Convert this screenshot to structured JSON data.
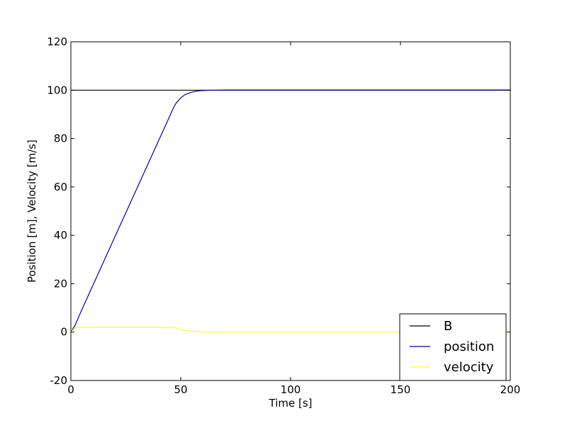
{
  "chart_data": {
    "type": "line",
    "xlabel": "Time [s]",
    "ylabel": "Position [m], Velocity [m/s]",
    "xlim": [
      0,
      200
    ],
    "ylim": [
      -20,
      120
    ],
    "xticks": [
      0,
      50,
      100,
      150,
      200
    ],
    "yticks": [
      -20,
      0,
      20,
      40,
      60,
      80,
      100,
      120
    ],
    "grid": false,
    "legend_position": "bottom-right",
    "series": [
      {
        "name": "B",
        "color": "#000000",
        "x": [
          0,
          200
        ],
        "y": [
          100,
          100
        ]
      },
      {
        "name": "position",
        "color": "#0000aa",
        "x": [
          0,
          2,
          5,
          10,
          15,
          20,
          25,
          30,
          35,
          40,
          45,
          47,
          48,
          50,
          52,
          55,
          58,
          60,
          63,
          66,
          70,
          80,
          100,
          150,
          200
        ],
        "y": [
          0,
          3,
          9.3,
          19.3,
          29.3,
          39.3,
          49.3,
          59.3,
          69.3,
          79.3,
          89.3,
          93.3,
          94.8,
          96.8,
          98.2,
          99.2,
          99.7,
          99.85,
          99.95,
          100,
          100.1,
          100.1,
          100.1,
          100.1,
          100.1
        ]
      },
      {
        "name": "velocity",
        "color": "#ffff33",
        "x": [
          0,
          2,
          47,
          48,
          50,
          52,
          55,
          58,
          60,
          65,
          70,
          100,
          150,
          200
        ],
        "y": [
          0,
          2,
          2,
          1.7,
          1.1,
          0.7,
          0.35,
          0.15,
          0.08,
          0.02,
          0,
          0,
          0,
          0
        ]
      }
    ]
  }
}
